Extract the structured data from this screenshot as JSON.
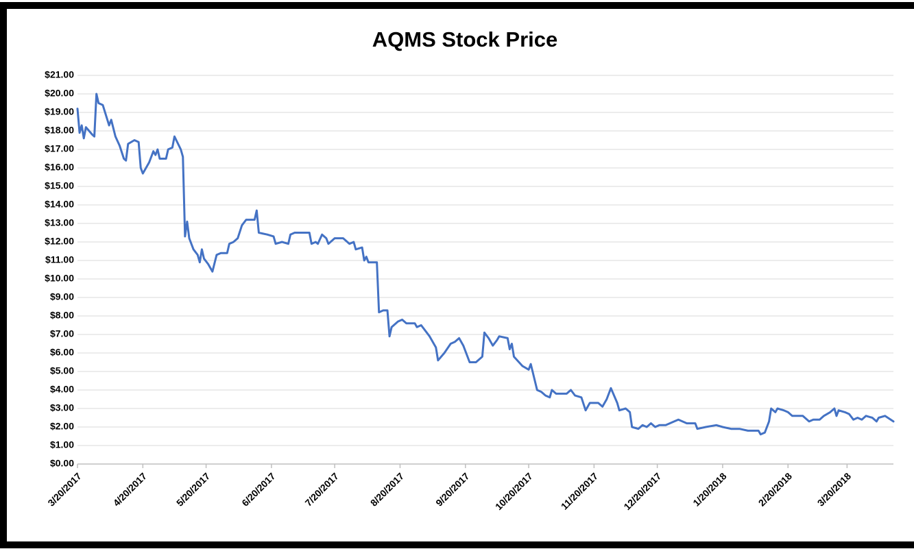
{
  "chart_data": {
    "type": "line",
    "title": "AQMS Stock Price",
    "color": "#4472c4",
    "grid": true,
    "xlim": [
      "2017-03-20",
      "2018-04-11"
    ],
    "xticks": [
      {
        "value": "2017-03-20",
        "label": "3/20/2017"
      },
      {
        "value": "2017-04-20",
        "label": "4/20/2017"
      },
      {
        "value": "2017-05-20",
        "label": "5/20/2017"
      },
      {
        "value": "2017-06-20",
        "label": "6/20/2017"
      },
      {
        "value": "2017-07-20",
        "label": "7/20/2017"
      },
      {
        "value": "2017-08-20",
        "label": "8/20/2017"
      },
      {
        "value": "2017-09-20",
        "label": "9/20/2017"
      },
      {
        "value": "2017-10-20",
        "label": "10/20/2017"
      },
      {
        "value": "2017-11-20",
        "label": "11/20/2017"
      },
      {
        "value": "2017-12-20",
        "label": "12/20/2017"
      },
      {
        "value": "2018-01-20",
        "label": "1/20/2018"
      },
      {
        "value": "2018-02-20",
        "label": "2/20/2018"
      },
      {
        "value": "2018-03-20",
        "label": "3/20/2018"
      }
    ],
    "ylim": [
      0,
      21
    ],
    "yticks": [
      {
        "value": 0,
        "label": "$0.00"
      },
      {
        "value": 1,
        "label": "$1.00"
      },
      {
        "value": 2,
        "label": "$2.00"
      },
      {
        "value": 3,
        "label": "$3.00"
      },
      {
        "value": 4,
        "label": "$4.00"
      },
      {
        "value": 5,
        "label": "$5.00"
      },
      {
        "value": 6,
        "label": "$6.00"
      },
      {
        "value": 7,
        "label": "$7.00"
      },
      {
        "value": 8,
        "label": "$8.00"
      },
      {
        "value": 9,
        "label": "$9.00"
      },
      {
        "value": 10,
        "label": "$10.00"
      },
      {
        "value": 11,
        "label": "$11.00"
      },
      {
        "value": 12,
        "label": "$12.00"
      },
      {
        "value": 13,
        "label": "$13.00"
      },
      {
        "value": 14,
        "label": "$14.00"
      },
      {
        "value": 15,
        "label": "$15.00"
      },
      {
        "value": 16,
        "label": "$16.00"
      },
      {
        "value": 17,
        "label": "$17.00"
      },
      {
        "value": 18,
        "label": "$18.00"
      },
      {
        "value": 19,
        "label": "$19.00"
      },
      {
        "value": 20,
        "label": "$20.00"
      },
      {
        "value": 21,
        "label": "$21.00"
      }
    ],
    "x": [
      "2017-03-20",
      "2017-03-21",
      "2017-03-22",
      "2017-03-23",
      "2017-03-24",
      "2017-03-27",
      "2017-03-28",
      "2017-03-29",
      "2017-03-30",
      "2017-04-01",
      "2017-04-04",
      "2017-04-05",
      "2017-04-07",
      "2017-04-09",
      "2017-04-11",
      "2017-04-12",
      "2017-04-13",
      "2017-04-16",
      "2017-04-18",
      "2017-04-19",
      "2017-04-20",
      "2017-04-23",
      "2017-04-25",
      "2017-04-26",
      "2017-04-27",
      "2017-04-28",
      "2017-05-01",
      "2017-05-02",
      "2017-05-04",
      "2017-05-05",
      "2017-05-08",
      "2017-05-09",
      "2017-05-10",
      "2017-05-11",
      "2017-05-12",
      "2017-05-14",
      "2017-05-16",
      "2017-05-17",
      "2017-05-18",
      "2017-05-19",
      "2017-05-21",
      "2017-05-23",
      "2017-05-25",
      "2017-05-27",
      "2017-05-30",
      "2017-05-31",
      "2017-06-02",
      "2017-06-04",
      "2017-06-06",
      "2017-06-08",
      "2017-06-12",
      "2017-06-13",
      "2017-06-14",
      "2017-06-18",
      "2017-06-21",
      "2017-06-22",
      "2017-06-25",
      "2017-06-28",
      "2017-06-29",
      "2017-07-01",
      "2017-07-08",
      "2017-07-09",
      "2017-07-11",
      "2017-07-12",
      "2017-07-14",
      "2017-07-16",
      "2017-07-17",
      "2017-07-20",
      "2017-07-24",
      "2017-07-27",
      "2017-07-29",
      "2017-07-30",
      "2017-08-02",
      "2017-08-03",
      "2017-08-04",
      "2017-08-05",
      "2017-08-09",
      "2017-08-10",
      "2017-08-12",
      "2017-08-14",
      "2017-08-15",
      "2017-08-16",
      "2017-08-19",
      "2017-08-21",
      "2017-08-23",
      "2017-08-27",
      "2017-08-28",
      "2017-08-30",
      "2017-09-03",
      "2017-09-06",
      "2017-09-07",
      "2017-09-10",
      "2017-09-13",
      "2017-09-15",
      "2017-09-17",
      "2017-09-19",
      "2017-09-22",
      "2017-09-25",
      "2017-09-28",
      "2017-09-29",
      "2017-10-01",
      "2017-10-03",
      "2017-10-05",
      "2017-10-06",
      "2017-10-10",
      "2017-10-11",
      "2017-10-12",
      "2017-10-13",
      "2017-10-17",
      "2017-10-20",
      "2017-10-21",
      "2017-10-24",
      "2017-10-26",
      "2017-10-28",
      "2017-10-30",
      "2017-10-31",
      "2017-11-02",
      "2017-11-07",
      "2017-11-09",
      "2017-11-11",
      "2017-11-14",
      "2017-11-16",
      "2017-11-18",
      "2017-11-22",
      "2017-11-24",
      "2017-11-26",
      "2017-11-28",
      "2017-12-01",
      "2017-12-02",
      "2017-12-05",
      "2017-12-07",
      "2017-12-08",
      "2017-12-11",
      "2017-12-13",
      "2017-12-15",
      "2017-12-17",
      "2017-12-19",
      "2017-12-21",
      "2017-12-24",
      "2017-12-28",
      "2017-12-30",
      "2018-01-03",
      "2018-01-07",
      "2018-01-08",
      "2018-01-12",
      "2018-01-17",
      "2018-01-20",
      "2018-01-24",
      "2018-01-28",
      "2018-02-01",
      "2018-02-06",
      "2018-02-07",
      "2018-02-09",
      "2018-02-11",
      "2018-02-12",
      "2018-02-14",
      "2018-02-15",
      "2018-02-18",
      "2018-02-20",
      "2018-02-22",
      "2018-02-24",
      "2018-02-27",
      "2018-03-02",
      "2018-03-04",
      "2018-03-07",
      "2018-03-09",
      "2018-03-12",
      "2018-03-14",
      "2018-03-15",
      "2018-03-16",
      "2018-03-19",
      "2018-03-21",
      "2018-03-23",
      "2018-03-25",
      "2018-03-27",
      "2018-03-29",
      "2018-04-01",
      "2018-04-03",
      "2018-04-04",
      "2018-04-07",
      "2018-04-11"
    ],
    "values": [
      19.2,
      17.9,
      18.3,
      17.6,
      18.2,
      17.8,
      17.7,
      20.0,
      19.5,
      19.4,
      18.3,
      18.6,
      17.7,
      17.2,
      16.5,
      16.4,
      17.3,
      17.5,
      17.4,
      16.0,
      15.7,
      16.3,
      16.9,
      16.7,
      17.0,
      16.5,
      16.5,
      17.0,
      17.1,
      17.7,
      17.0,
      16.6,
      12.3,
      13.1,
      12.2,
      11.6,
      11.3,
      10.9,
      11.6,
      11.1,
      10.8,
      10.4,
      11.3,
      11.4,
      11.4,
      11.9,
      12.0,
      12.2,
      12.9,
      13.2,
      13.2,
      13.7,
      12.5,
      12.4,
      12.3,
      11.9,
      12.0,
      11.9,
      12.4,
      12.5,
      12.5,
      11.9,
      12.0,
      11.9,
      12.4,
      12.2,
      11.9,
      12.2,
      12.2,
      11.9,
      12.0,
      11.6,
      11.7,
      11.0,
      11.2,
      10.9,
      10.9,
      8.2,
      8.3,
      8.3,
      6.9,
      7.4,
      7.7,
      7.8,
      7.6,
      7.6,
      7.4,
      7.5,
      6.9,
      6.3,
      5.6,
      6.0,
      6.5,
      6.6,
      6.8,
      6.4,
      5.5,
      5.5,
      5.8,
      7.1,
      6.8,
      6.4,
      6.7,
      6.9,
      6.8,
      6.2,
      6.5,
      5.8,
      5.3,
      5.1,
      5.4,
      4.0,
      3.9,
      3.7,
      3.6,
      4.0,
      3.8,
      3.8,
      4.0,
      3.7,
      3.6,
      2.9,
      3.3,
      3.3,
      3.1,
      3.5,
      4.1,
      3.3,
      2.9,
      3.0,
      2.8,
      2.0,
      1.9,
      2.1,
      2.0,
      2.2,
      2.0,
      2.1,
      2.1,
      2.3,
      2.4,
      2.2,
      2.2,
      1.9,
      2.0,
      2.1,
      2.0,
      1.9,
      1.9,
      1.8,
      1.8,
      1.6,
      1.7,
      2.3,
      3.0,
      2.8,
      3.0,
      2.9,
      2.8,
      2.6,
      2.6,
      2.6,
      2.3,
      2.4,
      2.4,
      2.6,
      2.8,
      3.0,
      2.6,
      2.9,
      2.8,
      2.7,
      2.4,
      2.5,
      2.4,
      2.6,
      2.5,
      2.3,
      2.5,
      2.6,
      2.3
    ]
  }
}
